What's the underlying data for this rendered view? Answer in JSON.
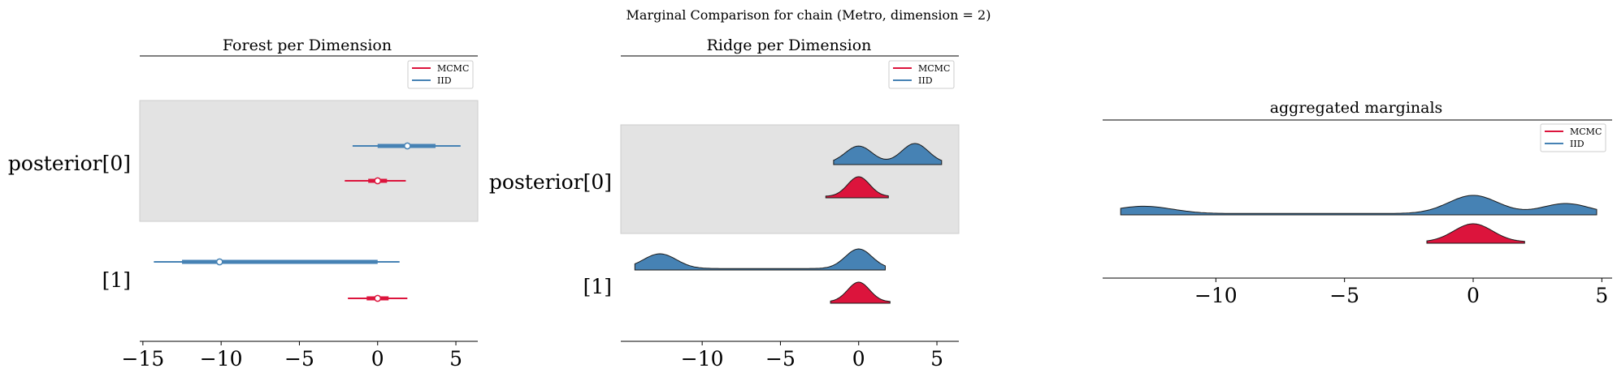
{
  "suptitle": "Marginal Comparison for chain (Metro, dimension = 2)",
  "colors": {
    "mcmc": "#dc143c",
    "iid": "#4682b4",
    "band": "#e3e3e3"
  },
  "legend": [
    "MCMC",
    "IID"
  ],
  "chart_data": [
    {
      "type": "forest",
      "title": "Forest per Dimension",
      "y_labels": [
        "posterior[0]",
        "[1]"
      ],
      "xlim": [
        -15.2,
        6.4
      ],
      "x_ticks": [
        -15,
        -10,
        -5,
        0,
        5
      ],
      "x_tick_labels": [
        "−15",
        "−10",
        "−5",
        "0",
        "5"
      ],
      "legend_placement": "top-right",
      "series": [
        {
          "name": "IID",
          "dimension": "posterior[0]",
          "hdi_outer": [
            -1.6,
            5.3
          ],
          "hdi_inner": [
            0.0,
            3.7
          ],
          "point": 1.9
        },
        {
          "name": "MCMC",
          "dimension": "posterior[0]",
          "hdi_outer": [
            -2.1,
            1.8
          ],
          "hdi_inner": [
            -0.6,
            0.6
          ],
          "point": 0.0
        },
        {
          "name": "IID",
          "dimension": "[1]",
          "hdi_outer": [
            -14.3,
            1.4
          ],
          "hdi_inner": [
            -12.5,
            0.0
          ],
          "point": -10.1
        },
        {
          "name": "MCMC",
          "dimension": "[1]",
          "hdi_outer": [
            -1.9,
            1.9
          ],
          "hdi_inner": [
            -0.7,
            0.7
          ],
          "point": 0.0
        }
      ]
    },
    {
      "type": "ridge",
      "title": "Ridge per Dimension",
      "y_labels": [
        "posterior[0]",
        "[1]"
      ],
      "xlim": [
        -15.2,
        6.4
      ],
      "x_ticks": [
        -10,
        -5,
        0,
        5
      ],
      "x_tick_labels": [
        "−10",
        "−5",
        "0",
        "5"
      ],
      "legend_placement": "top-right",
      "series": [
        {
          "name": "IID",
          "dimension": "posterior[0]",
          "range": [
            -1.6,
            5.3
          ],
          "peaks": [
            {
              "mu": 0.0,
              "sd": 0.85,
              "w": 1.0
            },
            {
              "mu": 3.6,
              "sd": 0.85,
              "w": 1.15
            }
          ]
        },
        {
          "name": "MCMC",
          "dimension": "posterior[0]",
          "range": [
            -2.1,
            1.9
          ],
          "peaks": [
            {
              "mu": 0.0,
              "sd": 0.7,
              "w": 1.0
            }
          ]
        },
        {
          "name": "IID",
          "dimension": "[1]",
          "range": [
            -14.3,
            1.7
          ],
          "peaks": [
            {
              "mu": -12.7,
              "sd": 1.05,
              "w": 0.75
            },
            {
              "mu": 0.0,
              "sd": 0.85,
              "w": 1.0
            }
          ]
        },
        {
          "name": "MCMC",
          "dimension": "[1]",
          "range": [
            -1.8,
            2.0
          ],
          "peaks": [
            {
              "mu": 0.0,
              "sd": 0.7,
              "w": 1.0
            }
          ]
        }
      ]
    },
    {
      "type": "ridge",
      "title": "aggregated marginals",
      "y_labels": [],
      "xlim": [
        -14.4,
        5.4
      ],
      "x_ticks": [
        -10,
        -5,
        0,
        5
      ],
      "x_tick_labels": [
        "−10",
        "−5",
        "0",
        "5"
      ],
      "legend_placement": "top-right",
      "series": [
        {
          "name": "IID",
          "range": [
            -13.7,
            4.8
          ],
          "peaks": [
            {
              "mu": -12.8,
              "sd": 1.1,
              "w": 0.4
            },
            {
              "mu": 0.0,
              "sd": 0.95,
              "w": 1.0
            },
            {
              "mu": 3.6,
              "sd": 0.9,
              "w": 0.55
            }
          ]
        },
        {
          "name": "MCMC",
          "range": [
            -1.8,
            2.0
          ],
          "peaks": [
            {
              "mu": 0.0,
              "sd": 0.75,
              "w": 1.0
            }
          ]
        }
      ]
    }
  ]
}
